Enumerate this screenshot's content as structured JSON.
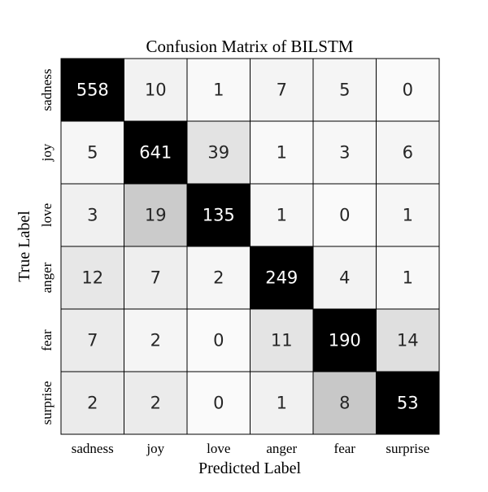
{
  "chart_data": {
    "type": "heatmap",
    "title": "Confusion Matrix of BILSTM",
    "xlabel": "Predicted Label",
    "ylabel": "True Label",
    "x_categories": [
      "sadness",
      "joy",
      "love",
      "anger",
      "fear",
      "surprise"
    ],
    "y_categories": [
      "sadness",
      "joy",
      "love",
      "anger",
      "fear",
      "surprise"
    ],
    "values": [
      [
        558,
        10,
        1,
        7,
        5,
        0
      ],
      [
        5,
        641,
        39,
        1,
        3,
        6
      ],
      [
        3,
        19,
        135,
        1,
        0,
        1
      ],
      [
        12,
        7,
        2,
        249,
        4,
        1
      ],
      [
        7,
        2,
        0,
        11,
        190,
        14
      ],
      [
        2,
        2,
        0,
        1,
        8,
        53
      ]
    ],
    "colormap": "grayscale, normalized per row (white = 0, black = row maximum)",
    "colorbar": false,
    "grid": true
  }
}
